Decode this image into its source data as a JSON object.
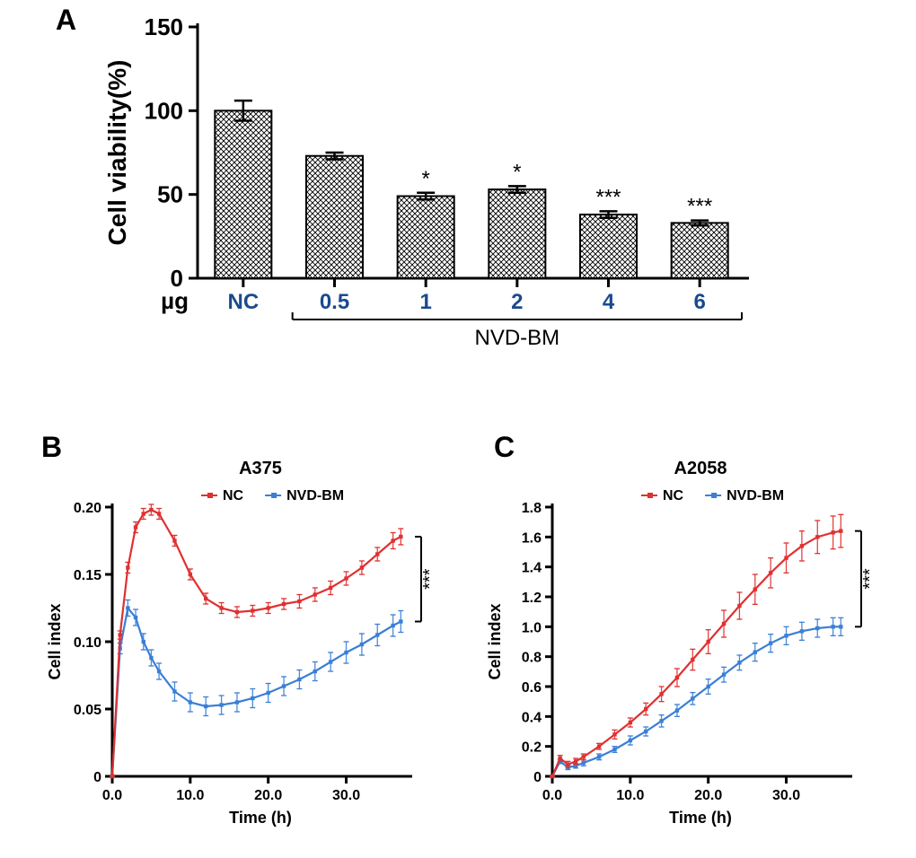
{
  "panelA": {
    "label": "A",
    "label_fontsize": 32,
    "type": "bar",
    "title": "",
    "ylabel": "Cell viability(%)",
    "ylabel_fontsize": 28,
    "ylabel_fontweight": "bold",
    "xlabel_left": "µg",
    "x_treatment_label": "NVD-BM",
    "x_categories": [
      "NC",
      "0.5",
      "1",
      "2",
      "4",
      "6"
    ],
    "x_fontsize": 24,
    "x_fontweight": "bold",
    "x_color": "#1a4a8e",
    "values": [
      100,
      73,
      49,
      53,
      38,
      33
    ],
    "err": [
      6,
      2,
      2,
      2,
      2,
      1.5
    ],
    "sig": [
      "",
      "",
      "*",
      "*",
      "***",
      "***"
    ],
    "ylim": [
      0,
      150
    ],
    "yticks": [
      0,
      50,
      100,
      150
    ],
    "ytick_fontsize": 26,
    "bar_fill": "pattern-crosshatch",
    "bar_stroke": "#000000",
    "bar_width": 0.62,
    "background_color": "#ffffff",
    "axis_color": "#000000",
    "axis_width": 3
  },
  "panelB": {
    "label": "B",
    "label_fontsize": 32,
    "type": "line-errorband",
    "title": "A375",
    "title_fontsize": 20,
    "title_fontweight": "bold",
    "legend": [
      {
        "name": "NC",
        "color": "#e03030"
      },
      {
        "name": "NVD-BM",
        "color": "#3a7fd6"
      }
    ],
    "legend_fontsize": 16,
    "ylabel": "Cell index",
    "xlabel": "Time (h)",
    "axis_label_fontsize": 18,
    "axis_label_fontweight": "bold",
    "xlim": [
      0,
      38
    ],
    "xticks": [
      0.0,
      10.0,
      20.0,
      30.0
    ],
    "ylim": [
      0,
      0.2
    ],
    "yticks": [
      0,
      0.05,
      0.1,
      0.15,
      0.2
    ],
    "tick_fontsize": 16,
    "axis_color": "#000000",
    "axis_width": 3,
    "sig_mark": "***",
    "series": {
      "NC": {
        "color": "#e03030",
        "err_color": "#e03030",
        "x": [
          0,
          1,
          2,
          3,
          4,
          5,
          6,
          8,
          10,
          12,
          14,
          16,
          18,
          20,
          22,
          24,
          26,
          28,
          30,
          32,
          34,
          36,
          37
        ],
        "y": [
          0,
          0.105,
          0.155,
          0.185,
          0.195,
          0.198,
          0.195,
          0.175,
          0.15,
          0.132,
          0.125,
          0.122,
          0.123,
          0.125,
          0.128,
          0.13,
          0.135,
          0.14,
          0.147,
          0.155,
          0.165,
          0.175,
          0.178
        ],
        "err": [
          0,
          0.003,
          0.004,
          0.004,
          0.004,
          0.004,
          0.004,
          0.004,
          0.004,
          0.004,
          0.004,
          0.004,
          0.004,
          0.004,
          0.004,
          0.005,
          0.005,
          0.005,
          0.005,
          0.005,
          0.005,
          0.006,
          0.006
        ]
      },
      "NVD_BM": {
        "color": "#3a7fd6",
        "err_color": "#3a7fd6",
        "x": [
          0,
          1,
          2,
          3,
          4,
          5,
          6,
          8,
          10,
          12,
          14,
          16,
          18,
          20,
          22,
          24,
          26,
          28,
          30,
          32,
          34,
          36,
          37
        ],
        "y": [
          0,
          0.095,
          0.125,
          0.118,
          0.1,
          0.088,
          0.078,
          0.063,
          0.055,
          0.052,
          0.053,
          0.055,
          0.058,
          0.062,
          0.067,
          0.072,
          0.078,
          0.085,
          0.092,
          0.098,
          0.105,
          0.112,
          0.115
        ],
        "err": [
          0,
          0.004,
          0.006,
          0.006,
          0.006,
          0.006,
          0.006,
          0.007,
          0.007,
          0.007,
          0.007,
          0.007,
          0.007,
          0.007,
          0.007,
          0.007,
          0.007,
          0.007,
          0.008,
          0.008,
          0.008,
          0.008,
          0.008
        ]
      }
    }
  },
  "panelC": {
    "label": "C",
    "label_fontsize": 32,
    "type": "line-errorband",
    "title": "A2058",
    "title_fontsize": 20,
    "title_fontweight": "bold",
    "legend": [
      {
        "name": "NC",
        "color": "#e03030"
      },
      {
        "name": "NVD-BM",
        "color": "#3a7fd6"
      }
    ],
    "legend_fontsize": 16,
    "ylabel": "Cell index",
    "xlabel": "Time (h)",
    "axis_label_fontsize": 18,
    "axis_label_fontweight": "bold",
    "xlim": [
      0,
      38
    ],
    "xticks": [
      0.0,
      10.0,
      20.0,
      30.0
    ],
    "ylim": [
      0,
      1.8
    ],
    "yticks": [
      0,
      0.2,
      0.4,
      0.6,
      0.8,
      1.0,
      1.2,
      1.4,
      1.6,
      1.8
    ],
    "tick_fontsize": 16,
    "axis_color": "#000000",
    "axis_width": 3,
    "sig_mark": "***",
    "series": {
      "NC": {
        "color": "#e03030",
        "err_color": "#e03030",
        "x": [
          0,
          1,
          2,
          3,
          4,
          6,
          8,
          10,
          12,
          14,
          16,
          18,
          20,
          22,
          24,
          26,
          28,
          30,
          32,
          34,
          36,
          37
        ],
        "y": [
          0,
          0.12,
          0.08,
          0.1,
          0.13,
          0.2,
          0.28,
          0.36,
          0.45,
          0.55,
          0.66,
          0.78,
          0.9,
          1.02,
          1.14,
          1.25,
          1.36,
          1.46,
          1.54,
          1.6,
          1.63,
          1.64
        ],
        "err": [
          0,
          0.02,
          0.02,
          0.02,
          0.02,
          0.02,
          0.03,
          0.03,
          0.04,
          0.05,
          0.06,
          0.07,
          0.08,
          0.09,
          0.09,
          0.1,
          0.1,
          0.1,
          0.1,
          0.11,
          0.11,
          0.11
        ]
      },
      "NVD_BM": {
        "color": "#3a7fd6",
        "err_color": "#3a7fd6",
        "x": [
          0,
          1,
          2,
          3,
          4,
          6,
          8,
          10,
          12,
          14,
          16,
          18,
          20,
          22,
          24,
          26,
          28,
          30,
          32,
          34,
          36,
          37
        ],
        "y": [
          0,
          0.1,
          0.06,
          0.07,
          0.09,
          0.13,
          0.18,
          0.24,
          0.3,
          0.37,
          0.44,
          0.52,
          0.6,
          0.68,
          0.76,
          0.83,
          0.89,
          0.94,
          0.97,
          0.99,
          1.0,
          1.0
        ],
        "err": [
          0,
          0.015,
          0.015,
          0.015,
          0.02,
          0.02,
          0.02,
          0.03,
          0.03,
          0.04,
          0.04,
          0.04,
          0.05,
          0.05,
          0.05,
          0.06,
          0.06,
          0.06,
          0.06,
          0.06,
          0.06,
          0.06
        ]
      }
    }
  }
}
